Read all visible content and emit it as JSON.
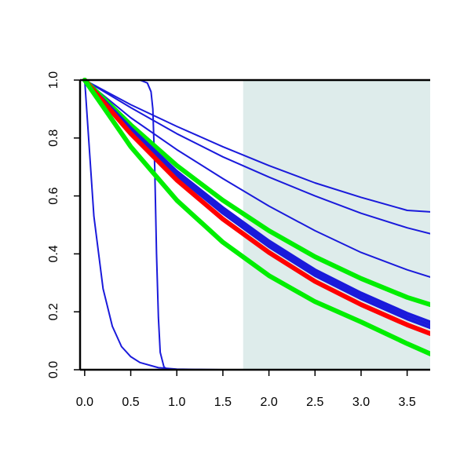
{
  "chart_data": {
    "type": "line",
    "title": "",
    "xlabel": "",
    "ylabel": "",
    "xlim": [
      -0.05,
      3.75
    ],
    "ylim": [
      0,
      1
    ],
    "grid": false,
    "legend": "none",
    "x_ticks": [
      {
        "value": 0.0,
        "label": "0.0"
      },
      {
        "value": 0.5,
        "label": "0.5"
      },
      {
        "value": 1.0,
        "label": "1.0"
      },
      {
        "value": 1.5,
        "label": "1.5"
      },
      {
        "value": 2.0,
        "label": "2.0"
      },
      {
        "value": 2.5,
        "label": "2.5"
      },
      {
        "value": 3.0,
        "label": "3.0"
      },
      {
        "value": 3.5,
        "label": "3.5"
      }
    ],
    "y_ticks": [
      {
        "value": 0.0,
        "label": "0.0"
      },
      {
        "value": 0.2,
        "label": "0.2"
      },
      {
        "value": 0.4,
        "label": "0.4"
      },
      {
        "value": 0.6,
        "label": "0.6"
      },
      {
        "value": 0.8,
        "label": "0.8"
      },
      {
        "value": 1.0,
        "label": "1.0"
      }
    ],
    "shaded_region": {
      "x_from": 1.72,
      "x_to": 3.75,
      "color": "#deeceb"
    },
    "series": [
      {
        "color": "#1a1adb",
        "weight": "thin",
        "x": [
          0,
          0.1,
          0.2,
          0.3,
          0.4,
          0.5,
          0.6,
          0.8,
          1.0,
          1.2,
          1.5
        ],
        "y": [
          1,
          0.53,
          0.28,
          0.15,
          0.08,
          0.045,
          0.025,
          0.007,
          0.002,
          0.001,
          0
        ]
      },
      {
        "color": "#1a1adb",
        "weight": "thin",
        "x": [
          0,
          0.6,
          0.68,
          0.72,
          0.74,
          0.76,
          0.78,
          0.8,
          0.82,
          0.86,
          0.9,
          3.75
        ],
        "y": [
          1,
          1,
          0.99,
          0.96,
          0.9,
          0.7,
          0.4,
          0.18,
          0.06,
          0.01,
          0,
          0
        ]
      },
      {
        "color": "#1a1adb",
        "weight": "thin",
        "x": [
          0,
          0.5,
          1.0,
          1.5,
          2.0,
          2.5,
          3.0,
          3.5,
          3.75
        ],
        "y": [
          1,
          0.915,
          0.84,
          0.77,
          0.705,
          0.645,
          0.595,
          0.55,
          0.545
        ]
      },
      {
        "color": "#1a1adb",
        "weight": "thin",
        "x": [
          0,
          0.5,
          1.0,
          1.5,
          2.0,
          2.5,
          3.0,
          3.5,
          3.75
        ],
        "y": [
          1,
          0.905,
          0.815,
          0.735,
          0.665,
          0.6,
          0.54,
          0.49,
          0.47
        ]
      },
      {
        "color": "#1a1adb",
        "weight": "thin",
        "x": [
          0,
          0.5,
          1.0,
          1.5,
          2.0,
          2.5,
          3.0,
          3.5,
          3.75
        ],
        "y": [
          1,
          0.87,
          0.76,
          0.66,
          0.565,
          0.48,
          0.405,
          0.345,
          0.32
        ]
      },
      {
        "color": "#00ee00",
        "weight": "thick",
        "x": [
          0,
          0.5,
          1.0,
          1.5,
          2.0,
          2.5,
          3.0,
          3.5,
          3.75
        ],
        "y": [
          1,
          0.845,
          0.705,
          0.585,
          0.48,
          0.39,
          0.315,
          0.25,
          0.225
        ]
      },
      {
        "color": "#1a1adb",
        "weight": "medium",
        "x": [
          0,
          0.5,
          1.0,
          1.5,
          2.0,
          2.5,
          3.0,
          3.5,
          3.75
        ],
        "y": [
          1,
          0.835,
          0.685,
          0.56,
          0.445,
          0.345,
          0.265,
          0.195,
          0.165
        ]
      },
      {
        "color": "#1a1adb",
        "weight": "medium",
        "x": [
          0,
          0.5,
          1.0,
          1.5,
          2.0,
          2.5,
          3.0,
          3.5,
          3.75
        ],
        "y": [
          1,
          0.83,
          0.675,
          0.55,
          0.435,
          0.335,
          0.255,
          0.185,
          0.155
        ]
      },
      {
        "color": "#1a1adb",
        "weight": "medium",
        "x": [
          0,
          0.5,
          1.0,
          1.5,
          2.0,
          2.5,
          3.0,
          3.5,
          3.75
        ],
        "y": [
          1,
          0.825,
          0.67,
          0.54,
          0.425,
          0.325,
          0.245,
          0.175,
          0.145
        ]
      },
      {
        "color": "#ff0000",
        "weight": "thick",
        "x": [
          0,
          0.5,
          1.0,
          1.5,
          2.0,
          2.5,
          3.0,
          3.5,
          3.75
        ],
        "y": [
          1,
          0.815,
          0.655,
          0.52,
          0.405,
          0.305,
          0.225,
          0.155,
          0.125
        ]
      },
      {
        "color": "#00ee00",
        "weight": "thick",
        "x": [
          0,
          0.5,
          1.0,
          1.5,
          2.0,
          2.5,
          3.0,
          3.5,
          3.75
        ],
        "y": [
          1,
          0.77,
          0.585,
          0.44,
          0.325,
          0.235,
          0.165,
          0.09,
          0.055
        ]
      }
    ]
  }
}
